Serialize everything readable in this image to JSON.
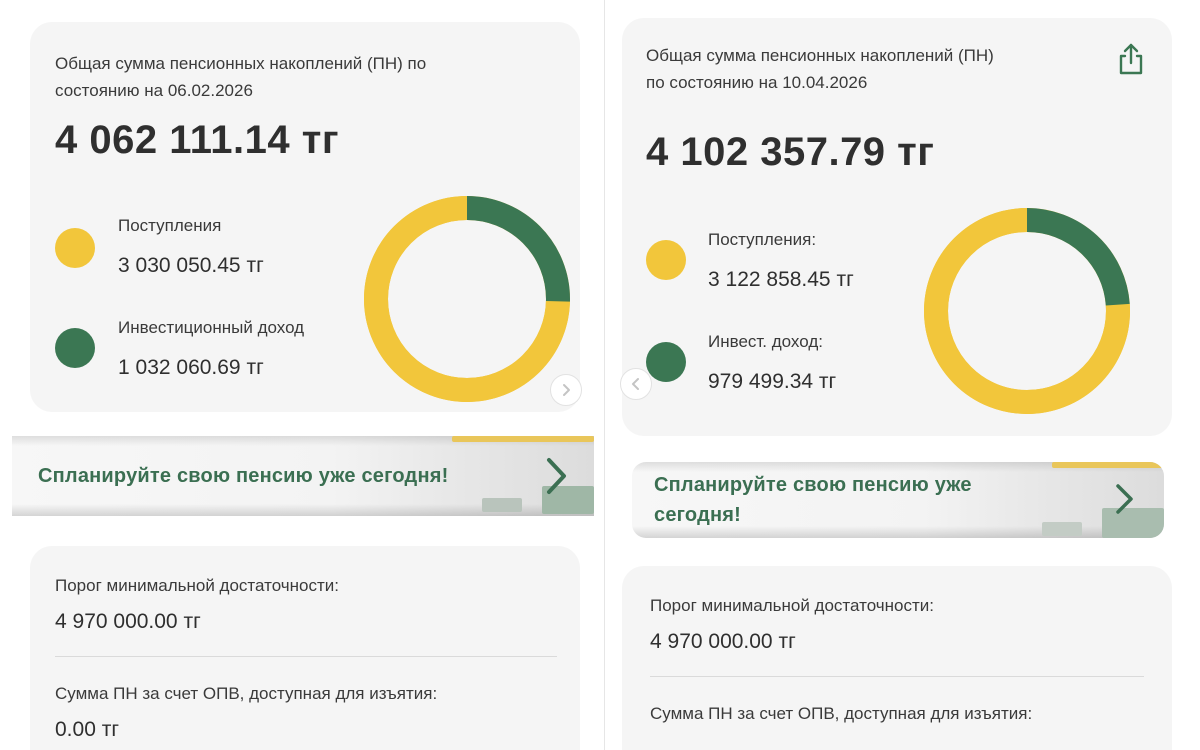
{
  "left": {
    "title": "Общая сумма пенсионных накоплений (ПН) по состоянию на 06.02.2026",
    "title_line1": "Общая сумма пенсионных накоплений (ПН) по",
    "title_line2": "состоянию на 06.02.2026",
    "total": "4 062 111.14 тг",
    "legend": [
      {
        "label": "Поступления",
        "value": "3 030 050.45 тг",
        "color": "#f2c63b"
      },
      {
        "label": "Инвестиционный доход",
        "value": "1 032 060.69 тг",
        "color": "#3b7753"
      }
    ],
    "chart_data": {
      "type": "pie",
      "values": [
        3030050.45,
        1032060.69
      ],
      "colors": [
        "#f2c63b",
        "#3b7753"
      ]
    },
    "banner": "Спланируйте свою пенсию уже сегодня!",
    "info": [
      {
        "label": "Порог минимальной достаточности:",
        "value": "4 970 000.00 тг"
      },
      {
        "label": "Сумма ПН за счет ОПВ, доступная для изъятия:",
        "value": "0.00 тг"
      }
    ],
    "nav_icon": "chevron-right-icon"
  },
  "right": {
    "title_line1": "Общая сумма пенсионных накоплений (ПН)",
    "title_line2": "по состоянию на 10.04.2026",
    "total": "4 102 357.79 тг",
    "legend": [
      {
        "label": "Поступления:",
        "value": "3 122 858.45 тг",
        "color": "#f2c63b"
      },
      {
        "label": "Инвест. доход:",
        "value": "979 499.34 тг",
        "color": "#3b7753"
      }
    ],
    "chart_data": {
      "type": "pie",
      "values": [
        3122858.45,
        979499.34
      ],
      "colors": [
        "#f2c63b",
        "#3b7753"
      ]
    },
    "banner_line1": "Спланируйте свою пенсию уже",
    "banner_line2": "сегодня!",
    "info": [
      {
        "label": "Порог минимальной достаточности:",
        "value": "4 970 000.00 тг"
      },
      {
        "label": "Сумма ПН за счет ОПВ, доступная для изъятия:"
      }
    ],
    "nav_icon": "chevron-left-icon",
    "share_icon": "share-icon"
  }
}
